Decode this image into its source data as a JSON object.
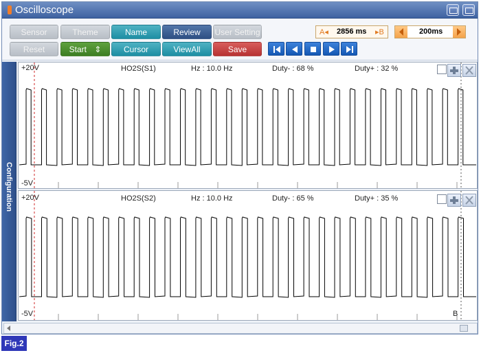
{
  "window": {
    "title": "Oscilloscope"
  },
  "toolbar": {
    "row1": [
      "Sensor",
      "Theme",
      "Name",
      "Review",
      "User Setting"
    ],
    "row2": [
      "Reset",
      "Start",
      "Cursor",
      "ViewAll",
      "Save"
    ],
    "start_caret": "⇕",
    "cursor_a_label": "A◂",
    "cursor_value": "2856 ms",
    "cursor_b_label": "▸B",
    "time_value": "200ms"
  },
  "sidebar": {
    "label": "Configuration"
  },
  "channels": [
    {
      "voltage_high": "+20V",
      "voltage_low": "-5V",
      "sensor": "HO2S(S1)",
      "frequency": "Hz : 10.0 Hz",
      "duty_minus": "Duty- : 68 %",
      "duty_plus": "Duty+ : 32 %",
      "high_fraction": 0.32
    },
    {
      "voltage_high": "+20V",
      "voltage_low": "-5V",
      "sensor": "HO2S(S2)",
      "frequency": "Hz : 10.0 Hz",
      "duty_minus": "Duty- : 65 %",
      "duty_plus": "Duty+ : 35 %",
      "high_fraction": 0.35
    }
  ],
  "cursor_marker_b": "B",
  "figure_label": "Fig.2",
  "colors": {
    "waveform": "#000000",
    "cursor_a": "#d22a2a",
    "cursor_b": "#555555"
  }
}
